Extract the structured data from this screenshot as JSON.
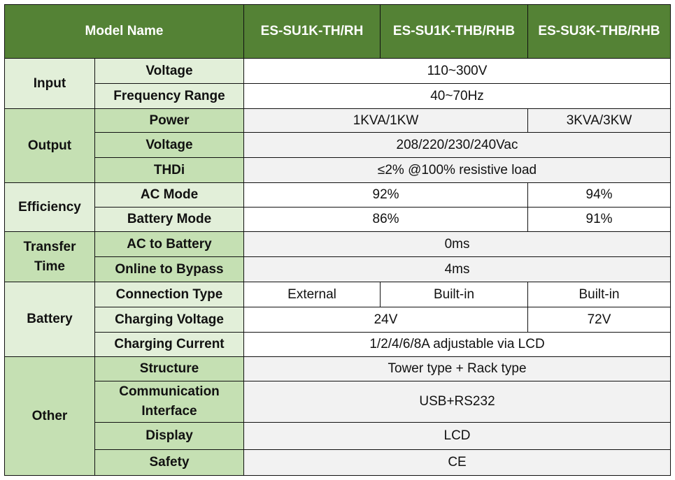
{
  "header": {
    "model_name": "Model Name",
    "models": [
      "ES-SU1K-TH/RH",
      "ES-SU1K-THB/RHB",
      "ES-SU3K-THB/RHB"
    ]
  },
  "groups": [
    {
      "name": "Input",
      "rows": [
        {
          "label": "Voltage",
          "cells": [
            {
              "text": "110~300V",
              "span": 3
            }
          ]
        },
        {
          "label": "Frequency Range",
          "cells": [
            {
              "text": "40~70Hz",
              "span": 3
            }
          ]
        }
      ]
    },
    {
      "name": "Output",
      "rows": [
        {
          "label": "Power",
          "cells": [
            {
              "text": "1KVA/1KW",
              "span": 2
            },
            {
              "text": "3KVA/3KW",
              "span": 1
            }
          ]
        },
        {
          "label": "Voltage",
          "cells": [
            {
              "text": "208/220/230/240Vac",
              "span": 3
            }
          ]
        },
        {
          "label": "THDi",
          "cells": [
            {
              "text": "≤2% @100% resistive load",
              "span": 3
            }
          ]
        }
      ]
    },
    {
      "name": "Efficiency",
      "rows": [
        {
          "label": "AC Mode",
          "cells": [
            {
              "text": "92%",
              "span": 2
            },
            {
              "text": "94%",
              "span": 1
            }
          ]
        },
        {
          "label": "Battery Mode",
          "cells": [
            {
              "text": "86%",
              "span": 2
            },
            {
              "text": "91%",
              "span": 1
            }
          ]
        }
      ]
    },
    {
      "name": "Transfer Time",
      "rows": [
        {
          "label": "AC to Battery",
          "cells": [
            {
              "text": "0ms",
              "span": 3
            }
          ]
        },
        {
          "label": "Online to Bypass",
          "cells": [
            {
              "text": "4ms",
              "span": 3
            }
          ]
        }
      ]
    },
    {
      "name": "Battery",
      "rows": [
        {
          "label": "Connection Type",
          "cells": [
            {
              "text": "External",
              "span": 1
            },
            {
              "text": "Built-in",
              "span": 1
            },
            {
              "text": "Built-in",
              "span": 1
            }
          ]
        },
        {
          "label": "Charging Voltage",
          "cells": [
            {
              "text": "24V",
              "span": 2
            },
            {
              "text": "72V",
              "span": 1
            }
          ]
        },
        {
          "label": "Charging Current",
          "cells": [
            {
              "text": "1/2/4/6/8A adjustable via LCD",
              "span": 3
            }
          ]
        }
      ]
    },
    {
      "name": "Other",
      "rows": [
        {
          "label": "Structure",
          "cells": [
            {
              "text": "Tower type + Rack type",
              "span": 3
            }
          ]
        },
        {
          "label": "Communication Interface",
          "cells": [
            {
              "text": "USB+RS232",
              "span": 3
            }
          ]
        },
        {
          "label": "Display",
          "cells": [
            {
              "text": "LCD",
              "span": 3
            }
          ]
        },
        {
          "label": "Safety",
          "cells": [
            {
              "text": "CE",
              "span": 3
            }
          ]
        }
      ]
    }
  ]
}
